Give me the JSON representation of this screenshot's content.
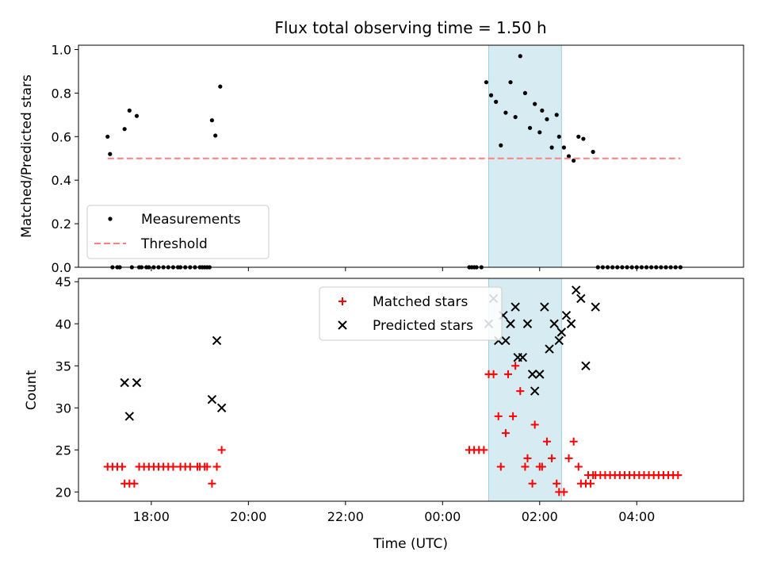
{
  "chart_data": {
    "title": "Flux total observing time = 1.50 h",
    "xlabel": "Time (UTC)",
    "x_tick_labels": [
      "18:00",
      "20:00",
      "22:00",
      "00:00",
      "02:00",
      "04:00"
    ],
    "x_tick_hours": [
      18,
      20,
      22,
      24,
      26,
      28
    ],
    "x_range_hours": [
      16.5,
      30.2
    ],
    "shaded_interval_hours": [
      24.95,
      26.45
    ],
    "shade_color": "#add8e6",
    "panels": [
      {
        "type": "scatter",
        "ylabel": "Matched/Predicted stars",
        "ylim": [
          0,
          1.02
        ],
        "y_ticks": [
          0.0,
          0.2,
          0.4,
          0.6,
          0.8,
          1.0
        ],
        "y_tick_labels": [
          "0.0",
          "0.2",
          "0.4",
          "0.6",
          "0.8",
          "1.0"
        ],
        "legend_placement": "lower-left",
        "series": [
          {
            "name": "Measurements",
            "marker": "dot",
            "color": "#000000",
            "x": [
              17.45,
              17.55,
              17.7,
              19.25,
              19.32,
              19.42,
              24.9,
              25.0,
              25.1,
              25.2,
              25.3,
              25.4,
              25.5,
              25.6,
              25.7,
              25.8,
              25.9,
              26.0,
              26.05,
              26.15,
              26.25,
              26.35,
              26.4,
              26.5,
              26.6,
              26.7,
              26.8,
              26.9,
              27.1,
              17.1,
              17.15,
              17.2,
              17.3,
              17.35,
              17.6,
              17.75,
              17.8,
              17.9,
              17.95,
              18.05,
              18.15,
              18.25,
              18.35,
              18.45,
              18.55,
              18.6,
              18.7,
              18.8,
              18.9,
              19.0,
              19.05,
              19.1,
              19.15,
              19.2,
              24.55,
              24.6,
              24.65,
              24.7,
              24.8,
              27.2,
              27.3,
              27.4,
              27.5,
              27.6,
              27.7,
              27.8,
              27.9,
              28.0,
              28.1,
              28.2,
              28.3,
              28.4,
              28.5,
              28.6,
              28.7,
              28.8,
              28.9
            ],
            "y": [
              0.635,
              0.72,
              0.695,
              0.675,
              0.605,
              0.83,
              0.85,
              0.79,
              0.76,
              0.56,
              0.71,
              0.85,
              0.69,
              0.97,
              0.8,
              0.64,
              0.75,
              0.62,
              0.72,
              0.68,
              0.55,
              0.7,
              0.6,
              0.55,
              0.51,
              0.49,
              0.6,
              0.59,
              0.53,
              0.6,
              0.52,
              0.0,
              0.0,
              0.0,
              0.0,
              0.0,
              0.0,
              0.0,
              0.0,
              0.0,
              0.0,
              0.0,
              0.0,
              0.0,
              0.0,
              0.0,
              0.0,
              0.0,
              0.0,
              0.0,
              0.0,
              0.0,
              0.0,
              0.0,
              0.0,
              0.0,
              0.0,
              0.0,
              0.0,
              0.0,
              0.0,
              0.0,
              0.0,
              0.0,
              0.0,
              0.0,
              0.0,
              0.0,
              0.0,
              0.0,
              0.0,
              0.0,
              0.0,
              0.0,
              0.0,
              0.0,
              0.0
            ]
          },
          {
            "name": "Threshold",
            "marker": "dashed-line",
            "color": "#ff7f7f",
            "x": [
              17.1,
              28.9
            ],
            "y": [
              0.5,
              0.5
            ]
          }
        ]
      },
      {
        "type": "scatter",
        "ylabel": "Count",
        "ylim": [
          18.9,
          45.4
        ],
        "y_ticks": [
          20,
          25,
          30,
          35,
          40,
          45
        ],
        "y_tick_labels": [
          "20",
          "25",
          "30",
          "35",
          "40",
          "45"
        ],
        "legend_placement": "upper-center",
        "series": [
          {
            "name": "Matched stars",
            "marker": "plus",
            "color": "#ff0000",
            "x": [
              17.1,
              17.2,
              17.3,
              17.4,
              17.45,
              17.55,
              17.65,
              17.75,
              17.85,
              17.95,
              18.05,
              18.15,
              18.25,
              18.35,
              18.45,
              18.6,
              18.7,
              18.8,
              18.95,
              19.0,
              19.1,
              19.15,
              19.25,
              19.35,
              19.45,
              24.55,
              24.65,
              24.75,
              24.85,
              24.95,
              25.05,
              25.15,
              25.2,
              25.3,
              25.35,
              25.45,
              25.5,
              25.6,
              25.7,
              25.75,
              25.85,
              25.9,
              26.0,
              26.05,
              26.15,
              26.25,
              26.35,
              26.4,
              26.5,
              26.6,
              26.7,
              26.8,
              26.85,
              26.95,
              27.05,
              27.15,
              27.25,
              27.35,
              27.45,
              27.55,
              27.65,
              27.75,
              27.85,
              27.95,
              28.05,
              28.15,
              28.25,
              28.35,
              28.45,
              28.55,
              28.65,
              28.75,
              28.85,
              27.1,
              27.0
            ],
            "y": [
              23,
              23,
              23,
              23,
              21,
              21,
              21,
              23,
              23,
              23,
              23,
              23,
              23,
              23,
              23,
              23,
              23,
              23,
              23,
              23,
              23,
              23,
              21,
              23,
              25,
              25,
              25,
              25,
              25,
              34,
              34,
              29,
              23,
              27,
              34,
              29,
              35,
              32,
              23,
              24,
              21,
              28,
              23,
              23,
              26,
              24,
              21,
              20,
              20,
              24,
              26,
              23,
              21,
              21,
              21,
              22,
              22,
              22,
              22,
              22,
              22,
              22,
              22,
              22,
              22,
              22,
              22,
              22,
              22,
              22,
              22,
              22,
              22,
              22,
              22
            ]
          },
          {
            "name": "Predicted stars",
            "marker": "x",
            "color": "#000000",
            "x": [
              17.45,
              17.55,
              17.7,
              19.25,
              19.35,
              19.45,
              24.95,
              25.05,
              25.15,
              25.25,
              25.3,
              25.4,
              25.5,
              25.55,
              25.65,
              25.75,
              25.85,
              25.9,
              26.0,
              26.1,
              26.2,
              26.3,
              26.4,
              26.45,
              26.55,
              26.65,
              26.75,
              26.85,
              26.95,
              27.15
            ],
            "y": [
              33,
              29,
              33,
              31,
              38,
              30,
              40,
              43,
              38,
              41,
              38,
              40,
              42,
              36,
              36,
              40,
              34,
              32,
              34,
              42,
              37,
              40,
              38,
              39,
              41,
              40,
              44,
              43,
              35,
              42
            ]
          }
        ]
      }
    ]
  }
}
